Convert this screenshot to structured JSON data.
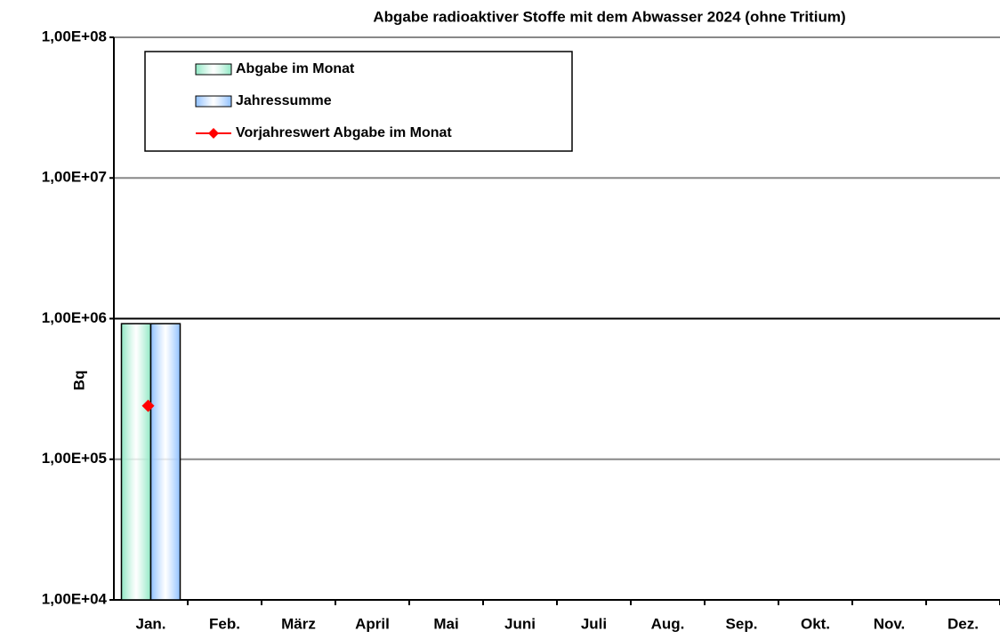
{
  "chart_data": {
    "type": "bar",
    "title": "Abgabe radioaktiver Stoffe mit dem Abwasser 2024 (ohne Tritium)",
    "y_label": "Bq",
    "categories": [
      "Jan.",
      "Feb.",
      "März",
      "April",
      "Mai",
      "Juni",
      "Juli",
      "Aug.",
      "Sep.",
      "Okt.",
      "Nov.",
      "Dez."
    ],
    "series": [
      {
        "name": "Abgabe im Monat",
        "type": "bar",
        "color": "#8fe8c4",
        "values": [
          920000,
          null,
          null,
          null,
          null,
          null,
          null,
          null,
          null,
          null,
          null,
          null
        ]
      },
      {
        "name": "Jahressumme",
        "type": "bar",
        "color": "#8ec0ff",
        "values": [
          920000,
          null,
          null,
          null,
          null,
          null,
          null,
          null,
          null,
          null,
          null,
          null
        ]
      },
      {
        "name": "Vorjahreswert Abgabe im Monat",
        "type": "line",
        "color": "#ff0000",
        "values": [
          240000,
          null,
          null,
          null,
          null,
          null,
          null,
          null,
          null,
          null,
          null,
          null
        ]
      }
    ],
    "ylim": [
      10000,
      100000000
    ],
    "yticks": [
      {
        "value": 10000,
        "label": "1,00E+04"
      },
      {
        "value": 100000,
        "label": "1,00E+05"
      },
      {
        "value": 1000000,
        "label": "1,00E+06"
      },
      {
        "value": 10000000,
        "label": "1,00E+07"
      },
      {
        "value": 100000000,
        "label": "1,00E+08"
      }
    ],
    "log_scale": true,
    "grid": true,
    "legend_position": "upper left"
  }
}
